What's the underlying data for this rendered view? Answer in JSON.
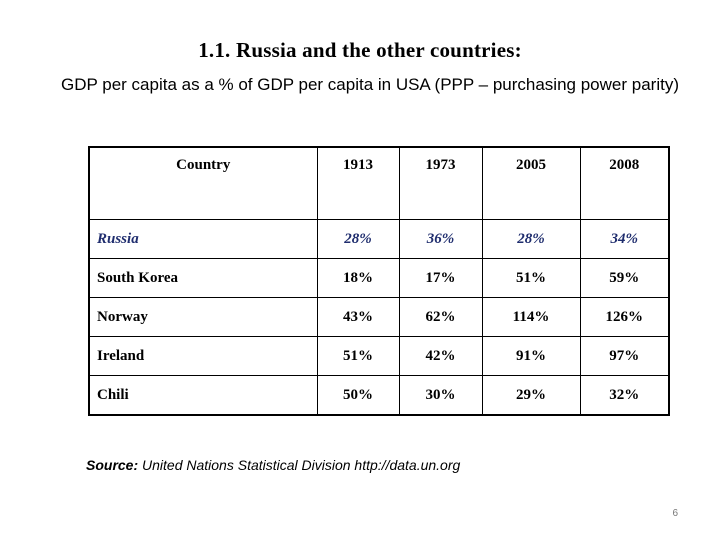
{
  "slide": {
    "title": "1.1. Russia and the other countries:",
    "subtitle": "GDP per capita as a % of GDP per capita in USA (PPP – purchasing power parity)",
    "page_number": "6"
  },
  "table": {
    "headers": [
      "Country",
      "1913",
      "1973",
      "2005",
      "2008"
    ],
    "rows": [
      {
        "country": "Russia",
        "values": [
          "28%",
          "36%",
          "28%",
          "34%"
        ],
        "highlight": true
      },
      {
        "country": "South Korea",
        "values": [
          "18%",
          "17%",
          "51%",
          "59%"
        ]
      },
      {
        "country": "Norway",
        "values": [
          "43%",
          "62%",
          "114%",
          "126%"
        ]
      },
      {
        "country": "Ireland",
        "values": [
          "51%",
          "42%",
          "91%",
          "97%"
        ]
      },
      {
        "country": "Chili",
        "values": [
          "50%",
          "30%",
          "29%",
          "32%"
        ]
      }
    ]
  },
  "source": {
    "label": "Source:",
    "text": " United Nations Statistical Division http://data.un.org"
  }
}
